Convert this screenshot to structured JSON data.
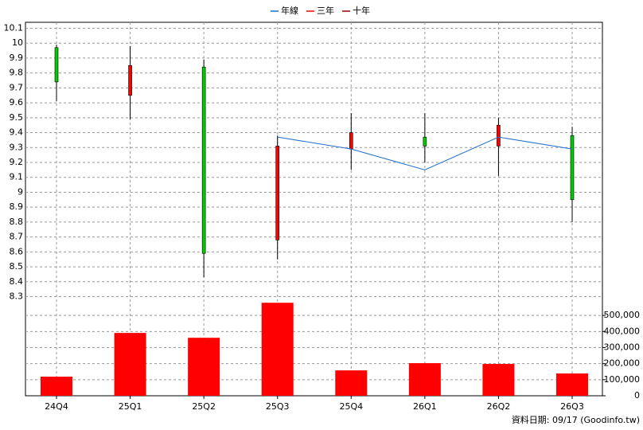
{
  "chart_data": {
    "type": "candlestick",
    "categories": [
      "24Q4",
      "25Q1",
      "25Q2",
      "25Q3",
      "25Q4",
      "26Q1",
      "26Q2",
      "26Q3"
    ],
    "open": [
      9.97,
      9.65,
      9.84,
      8.68,
      9.29,
      9.37,
      9.31,
      9.38
    ],
    "high": [
      9.99,
      9.98,
      9.89,
      9.38,
      9.53,
      9.53,
      9.5,
      9.44
    ],
    "low": [
      9.61,
      9.49,
      8.43,
      8.55,
      9.15,
      9.2,
      9.11,
      8.8
    ],
    "close": [
      9.74,
      9.85,
      8.59,
      9.31,
      9.4,
      9.31,
      9.45,
      8.95
    ],
    "up_color": "#ff0000",
    "down_color": "#00cc00",
    "series": [
      {
        "name": "年線",
        "color": "#1f6fd0",
        "values": [
          null,
          null,
          null,
          9.37,
          9.29,
          9.15,
          9.37,
          9.29
        ]
      },
      {
        "name": "三年",
        "color": "#ff0000",
        "values": [
          null,
          null,
          null,
          null,
          null,
          null,
          null,
          null
        ]
      },
      {
        "name": "十年",
        "color": "#990000",
        "values": [
          null,
          null,
          null,
          null,
          null,
          null,
          null,
          null
        ]
      }
    ],
    "volume": {
      "color": "#ff0000",
      "values": [
        119000,
        391000,
        361000,
        579000,
        158000,
        203000,
        198000,
        139000
      ]
    },
    "ylim": [
      8.26,
      10.14
    ],
    "yticks": [
      8.3,
      8.4,
      8.5,
      8.6,
      8.7,
      8.8,
      8.9,
      9,
      9.1,
      9.2,
      9.3,
      9.4,
      9.5,
      9.6,
      9.7,
      9.8,
      9.9,
      10,
      10.1
    ],
    "y2lim": [
      0,
      590000
    ],
    "y2ticks": [
      0,
      {
        "value": 100000,
        "label": "100,000"
      },
      {
        "value": 200000,
        "label": "200,000"
      },
      {
        "value": 300000,
        "label": "300,000"
      },
      {
        "value": 400000,
        "label": "400,000"
      },
      {
        "value": 500000,
        "label": "500,000"
      }
    ],
    "grid": true,
    "legend": "top",
    "source": "資料日期: 09/17 (Goodinfo.tw)"
  }
}
